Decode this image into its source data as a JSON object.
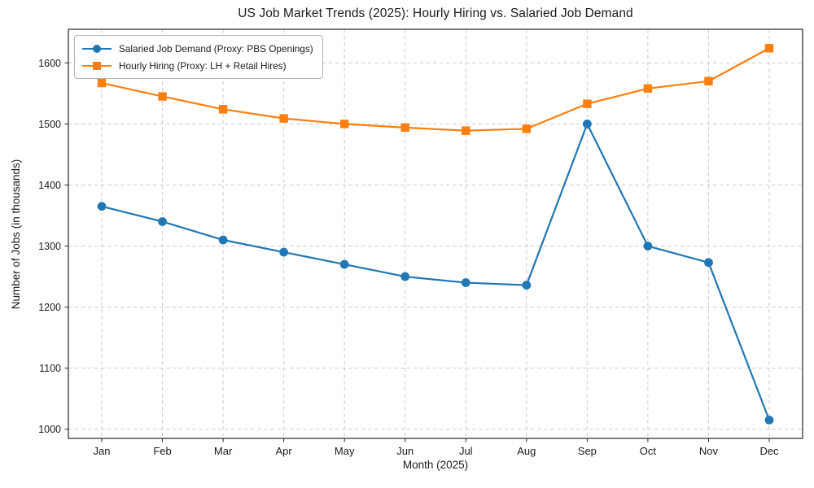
{
  "chart_data": {
    "type": "line",
    "title": "US Job Market Trends (2025): Hourly Hiring vs. Salaried Job Demand",
    "xlabel": "Month (2025)",
    "ylabel": "Number of Jobs (in thousands)",
    "categories": [
      "Jan",
      "Feb",
      "Mar",
      "Apr",
      "May",
      "Jun",
      "Jul",
      "Aug",
      "Sep",
      "Oct",
      "Nov",
      "Dec"
    ],
    "series": [
      {
        "name": "Salaried Job Demand (Proxy: PBS Openings)",
        "color": "#1f77b4",
        "marker": "circle",
        "values": [
          1365,
          1340,
          1310,
          1290,
          1270,
          1250,
          1240,
          1236,
          1500,
          1300,
          1273,
          1015
        ]
      },
      {
        "name": "Hourly Hiring (Proxy: LH + Retail Hires)",
        "color": "#ff7f0e",
        "marker": "square",
        "values": [
          1567,
          1545,
          1524,
          1509,
          1500,
          1494,
          1489,
          1492,
          1533,
          1558,
          1570,
          1624
        ]
      }
    ],
    "yticks": [
      1000,
      1100,
      1200,
      1300,
      1400,
      1500,
      1600
    ],
    "ylim": [
      985,
      1655
    ],
    "grid": true,
    "grid_style": "dashed",
    "grid_color": "#cccccc",
    "spine_color": "#262626",
    "tick_label_color": "#1a1a1a",
    "legend_position": "upper left"
  }
}
